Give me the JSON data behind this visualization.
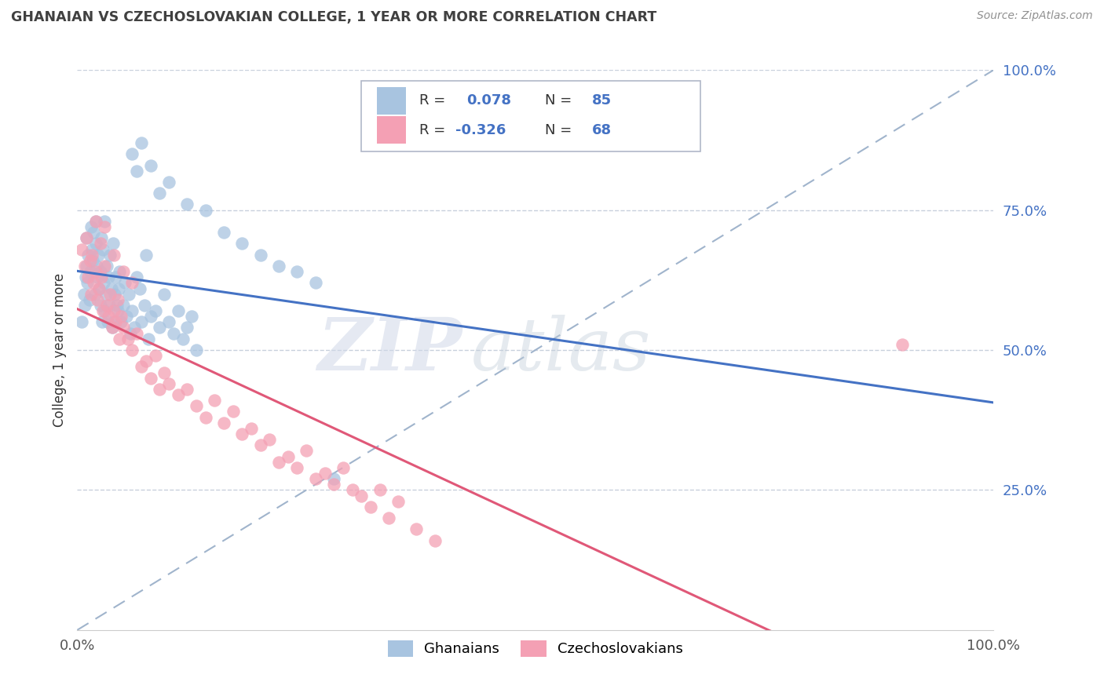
{
  "title": "GHANAIAN VS CZECHOSLOVAKIAN COLLEGE, 1 YEAR OR MORE CORRELATION CHART",
  "source_text": "Source: ZipAtlas.com",
  "ylabel": "College, 1 year or more",
  "blue_color": "#a8c4e0",
  "pink_color": "#f4a0b4",
  "blue_line_color": "#4472c4",
  "pink_line_color": "#e05878",
  "dashed_line_color": "#a0b4cc",
  "background_color": "#ffffff",
  "watermark_zip": "ZIP",
  "watermark_atlas": "atlas",
  "tick_color": "#4472c4",
  "grid_color": "#c8d0dc",
  "legend_r1": "R = ",
  "legend_v1": " 0.078",
  "legend_n1_label": "N = ",
  "legend_n1_val": "85",
  "legend_r2": "R = ",
  "legend_v2": "-0.326",
  "legend_n2_label": "N = ",
  "legend_n2_val": "68",
  "blue_x": [
    0.005,
    0.007,
    0.008,
    0.009,
    0.01,
    0.01,
    0.011,
    0.012,
    0.013,
    0.014,
    0.015,
    0.016,
    0.017,
    0.018,
    0.019,
    0.02,
    0.02,
    0.021,
    0.022,
    0.023,
    0.024,
    0.025,
    0.025,
    0.026,
    0.027,
    0.028,
    0.029,
    0.03,
    0.03,
    0.031,
    0.032,
    0.033,
    0.034,
    0.035,
    0.036,
    0.037,
    0.038,
    0.039,
    0.04,
    0.041,
    0.042,
    0.043,
    0.044,
    0.045,
    0.046,
    0.048,
    0.05,
    0.052,
    0.054,
    0.056,
    0.058,
    0.06,
    0.062,
    0.065,
    0.068,
    0.07,
    0.073,
    0.075,
    0.078,
    0.08,
    0.085,
    0.09,
    0.095,
    0.1,
    0.105,
    0.11,
    0.115,
    0.12,
    0.125,
    0.13,
    0.06,
    0.065,
    0.07,
    0.08,
    0.09,
    0.1,
    0.12,
    0.14,
    0.16,
    0.18,
    0.2,
    0.22,
    0.24,
    0.26,
    0.28
  ],
  "blue_y": [
    0.55,
    0.6,
    0.58,
    0.63,
    0.65,
    0.7,
    0.62,
    0.67,
    0.59,
    0.64,
    0.72,
    0.68,
    0.66,
    0.71,
    0.6,
    0.73,
    0.69,
    0.65,
    0.63,
    0.67,
    0.61,
    0.58,
    0.64,
    0.7,
    0.55,
    0.68,
    0.62,
    0.73,
    0.57,
    0.6,
    0.65,
    0.55,
    0.63,
    0.58,
    0.67,
    0.61,
    0.54,
    0.69,
    0.55,
    0.6,
    0.63,
    0.58,
    0.57,
    0.61,
    0.64,
    0.55,
    0.58,
    0.62,
    0.56,
    0.6,
    0.53,
    0.57,
    0.54,
    0.63,
    0.61,
    0.55,
    0.58,
    0.67,
    0.52,
    0.56,
    0.57,
    0.54,
    0.6,
    0.55,
    0.53,
    0.57,
    0.52,
    0.54,
    0.56,
    0.5,
    0.85,
    0.82,
    0.87,
    0.83,
    0.78,
    0.8,
    0.76,
    0.75,
    0.71,
    0.69,
    0.67,
    0.65,
    0.64,
    0.62,
    0.27
  ],
  "pink_x": [
    0.005,
    0.008,
    0.01,
    0.012,
    0.014,
    0.015,
    0.016,
    0.018,
    0.02,
    0.022,
    0.024,
    0.026,
    0.028,
    0.03,
    0.032,
    0.034,
    0.036,
    0.038,
    0.04,
    0.042,
    0.044,
    0.046,
    0.048,
    0.05,
    0.055,
    0.06,
    0.065,
    0.07,
    0.075,
    0.08,
    0.085,
    0.09,
    0.095,
    0.1,
    0.11,
    0.12,
    0.13,
    0.14,
    0.15,
    0.16,
    0.17,
    0.18,
    0.19,
    0.2,
    0.21,
    0.22,
    0.23,
    0.24,
    0.25,
    0.26,
    0.27,
    0.28,
    0.29,
    0.3,
    0.31,
    0.32,
    0.33,
    0.34,
    0.35,
    0.37,
    0.39,
    0.02,
    0.025,
    0.03,
    0.04,
    0.05,
    0.06,
    0.9
  ],
  "pink_y": [
    0.68,
    0.65,
    0.7,
    0.63,
    0.66,
    0.6,
    0.67,
    0.62,
    0.64,
    0.59,
    0.61,
    0.63,
    0.57,
    0.65,
    0.58,
    0.56,
    0.6,
    0.54,
    0.57,
    0.55,
    0.59,
    0.52,
    0.56,
    0.54,
    0.52,
    0.5,
    0.53,
    0.47,
    0.48,
    0.45,
    0.49,
    0.43,
    0.46,
    0.44,
    0.42,
    0.43,
    0.4,
    0.38,
    0.41,
    0.37,
    0.39,
    0.35,
    0.36,
    0.33,
    0.34,
    0.3,
    0.31,
    0.29,
    0.32,
    0.27,
    0.28,
    0.26,
    0.29,
    0.25,
    0.24,
    0.22,
    0.25,
    0.2,
    0.23,
    0.18,
    0.16,
    0.73,
    0.69,
    0.72,
    0.67,
    0.64,
    0.62,
    0.51
  ]
}
